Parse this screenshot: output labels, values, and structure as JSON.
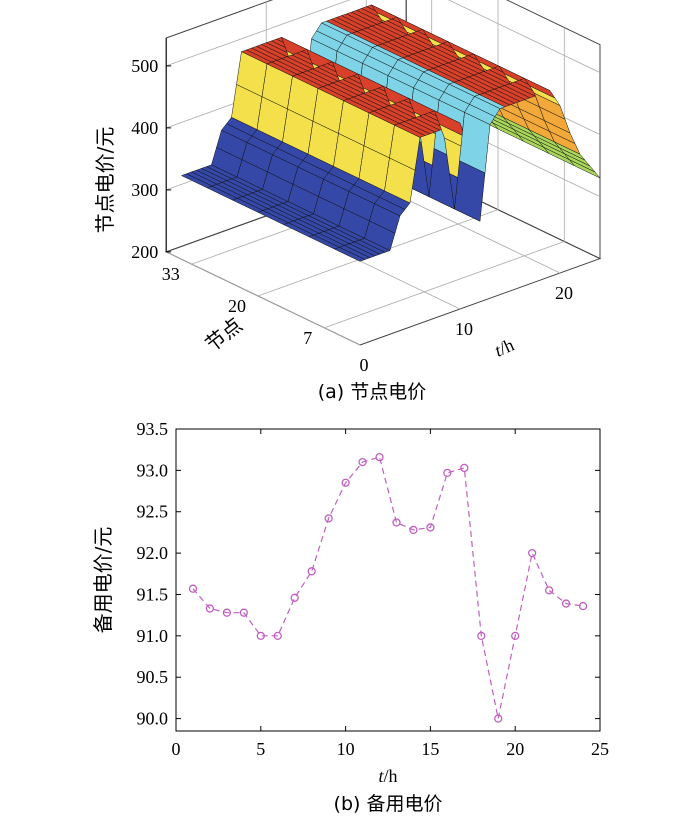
{
  "chart_data": [
    {
      "type": "surface",
      "caption": "(a)  节点电价",
      "zlabel": "节点电价/元",
      "xlabel_italic": "t",
      "xlabel_rest": "/h",
      "ylabel": "节点",
      "zlim": [
        200,
        500
      ],
      "z_ticks": [
        "200",
        "300",
        "400",
        "500"
      ],
      "t_ticks": [
        "0",
        "10",
        "20"
      ],
      "node_ticks": [
        "7",
        "20",
        "33"
      ],
      "grid": true,
      "colormap": [
        "#3548a8",
        "#f3e04a",
        "#d8402a",
        "#7fd3e6",
        "#f2a93a",
        "#a8d65a"
      ],
      "t_profile": [
        {
          "t": 0,
          "z": 335
        },
        {
          "t": 3,
          "z": 335
        },
        {
          "t": 4,
          "z": 385
        },
        {
          "t": 5,
          "z": 400
        },
        {
          "t": 6,
          "z": 500
        },
        {
          "t": 10,
          "z": 500
        },
        {
          "t": 11,
          "z": 450
        },
        {
          "t": 12,
          "z": 330
        },
        {
          "t": 13,
          "z": 480
        },
        {
          "t": 14,
          "z": 500
        },
        {
          "t": 19,
          "z": 500
        },
        {
          "t": 20,
          "z": 470
        },
        {
          "t": 21,
          "z": 420
        },
        {
          "t": 22,
          "z": 380
        },
        {
          "t": 24,
          "z": 330
        }
      ]
    },
    {
      "type": "line",
      "caption": "(b)  备用电价",
      "ylabel": "备用电价/元",
      "xlabel_italic": "t",
      "xlabel_rest": "/h",
      "xlim": [
        0,
        25
      ],
      "ylim": [
        89.85,
        93.5
      ],
      "x_ticks": [
        "0",
        "5",
        "10",
        "15",
        "20",
        "25"
      ],
      "y_ticks": [
        "90.0",
        "90.5",
        "91.0",
        "91.5",
        "92.0",
        "92.5",
        "93.0",
        "93.5"
      ],
      "color": "#c060c0",
      "line_style": "dashed",
      "marker": "circle",
      "x": [
        1,
        2,
        3,
        4,
        5,
        6,
        7,
        8,
        9,
        10,
        11,
        12,
        13,
        14,
        15,
        16,
        17,
        18,
        19,
        20,
        21,
        22,
        23,
        24
      ],
      "y": [
        91.57,
        91.33,
        91.28,
        91.28,
        91.0,
        91.0,
        91.46,
        91.78,
        92.42,
        92.85,
        93.1,
        93.16,
        92.37,
        92.28,
        92.31,
        92.97,
        93.03,
        91.0,
        90.0,
        91.0,
        92.0,
        91.55,
        91.39,
        91.36
      ]
    }
  ]
}
